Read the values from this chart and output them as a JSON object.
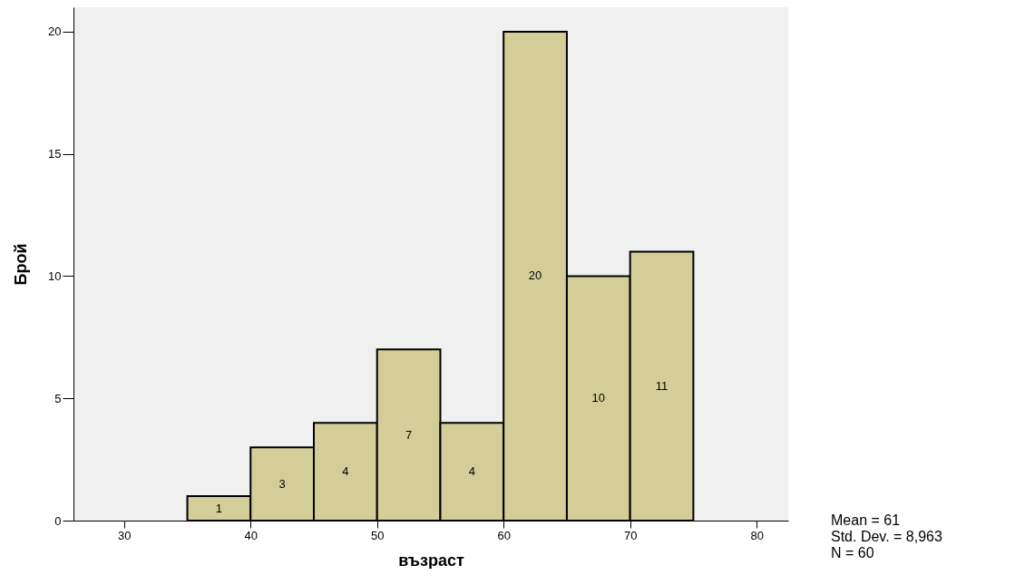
{
  "chart_data": {
    "type": "histogram",
    "xlabel": "възраст",
    "ylabel": "Брой",
    "bins": [
      35,
      40,
      45,
      50,
      55,
      60,
      65,
      70,
      75
    ],
    "values": [
      1,
      3,
      4,
      7,
      4,
      20,
      10,
      11
    ],
    "color": "#d3ce98",
    "xlim": [
      26,
      82.5
    ],
    "xticks": [
      30,
      40,
      50,
      60,
      70,
      80
    ],
    "ylim": [
      0,
      21
    ],
    "yticks": [
      0,
      5,
      10,
      15,
      20
    ],
    "grid": false,
    "data_labels": true,
    "annotations": [
      "Mean = 61",
      "Std. Dev. = 8,963",
      "N = 60"
    ]
  }
}
